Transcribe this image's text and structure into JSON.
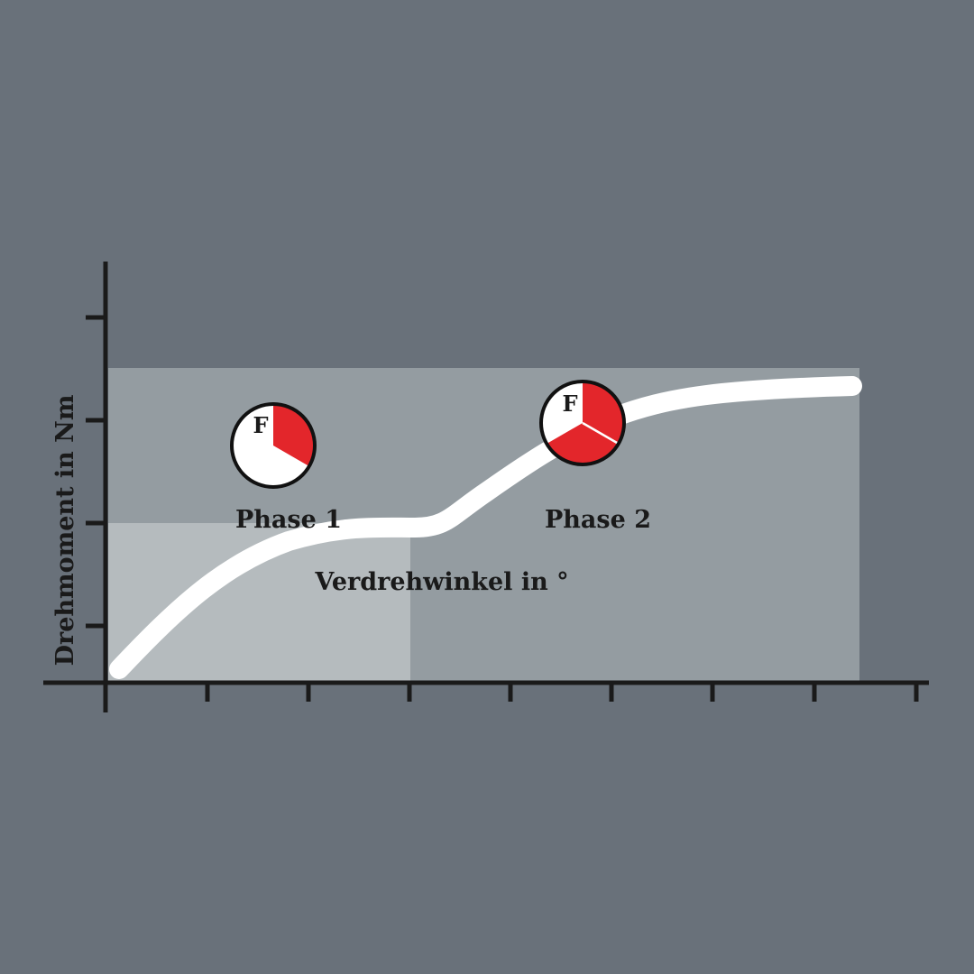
{
  "diagram": {
    "y_axis_label": "Drehmoment in Nm",
    "x_axis_label": "Verdrehwinkel in °",
    "phases": [
      {
        "label": "Phase 1",
        "icon": "force-pie-icon",
        "icon_letter": "F",
        "red_fraction": 0.3333
      },
      {
        "label": "Phase 2",
        "icon": "force-pie-icon",
        "icon_letter": "F",
        "red_fraction": 0.6667
      }
    ],
    "colors": {
      "background": "#69717a",
      "phase_region": "#949ca1",
      "phase1_region": "#b5bbbe",
      "curve": "#ffffff",
      "axis": "#1a1a1a",
      "accent_red": "#e3262b"
    }
  }
}
